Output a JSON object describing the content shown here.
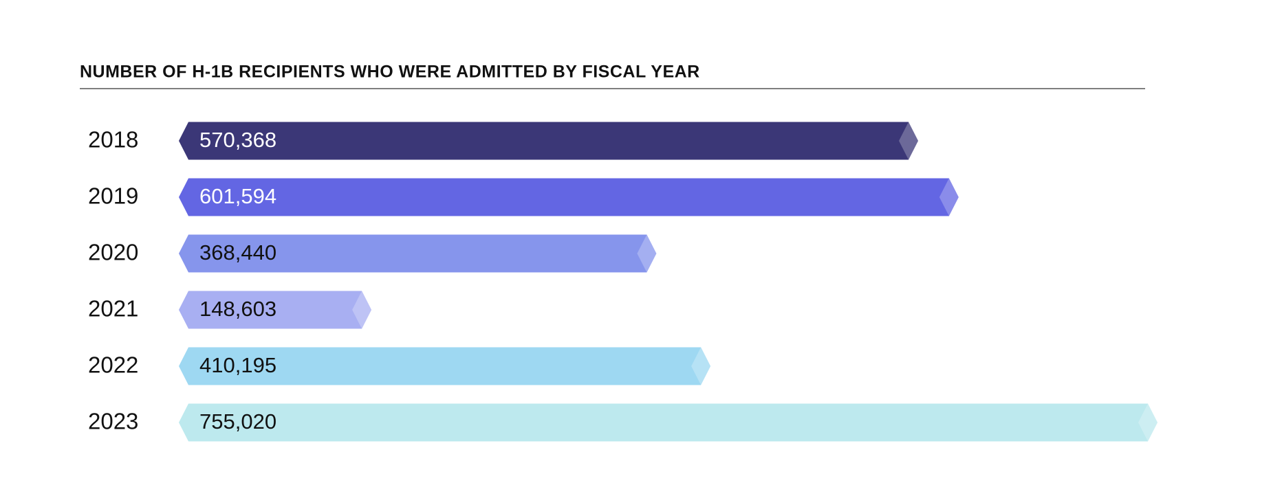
{
  "chart_data": {
    "type": "bar",
    "orientation": "horizontal",
    "title": "NUMBER OF H-1B RECIPIENTS WHO WERE ADMITTED BY FISCAL YEAR",
    "categories": [
      "2018",
      "2019",
      "2020",
      "2021",
      "2022",
      "2023"
    ],
    "values": [
      570368,
      601594,
      368440,
      148603,
      410195,
      755020
    ],
    "value_labels": [
      "570,368",
      "601,594",
      "368,440",
      "148,603",
      "410,195",
      "755,020"
    ],
    "colors": [
      "#3b3777",
      "#6366e3",
      "#8695ec",
      "#a8aff2",
      "#9ed8f2",
      "#bde9ee"
    ]
  }
}
